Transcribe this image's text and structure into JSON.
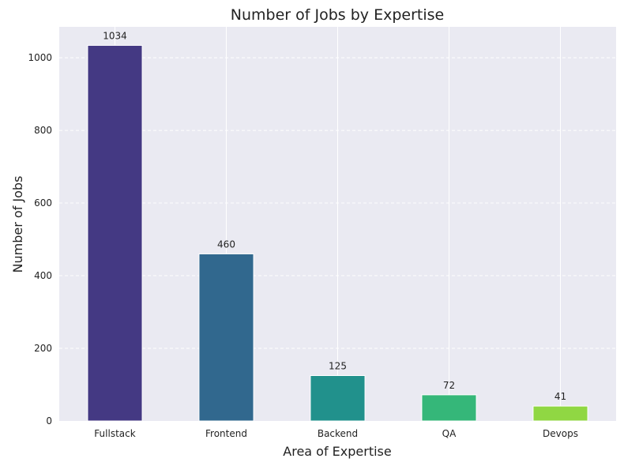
{
  "chart_data": {
    "type": "bar",
    "title": "Number of Jobs by Expertise",
    "xlabel": "Area of Expertise",
    "ylabel": "Number of Jobs",
    "categories": [
      "Fullstack",
      "Frontend",
      "Backend",
      "QA",
      "Devops"
    ],
    "values": [
      1034,
      460,
      125,
      72,
      41
    ],
    "data_labels": [
      "1034",
      "460",
      "125",
      "72",
      "41"
    ],
    "colors": [
      "#443983",
      "#31688e",
      "#21918c",
      "#35b779",
      "#90d743"
    ],
    "ylim": [
      0,
      1085
    ],
    "yticks": [
      0,
      200,
      400,
      600,
      800,
      1000
    ],
    "grid": true,
    "background": "#eaeaf2"
  }
}
